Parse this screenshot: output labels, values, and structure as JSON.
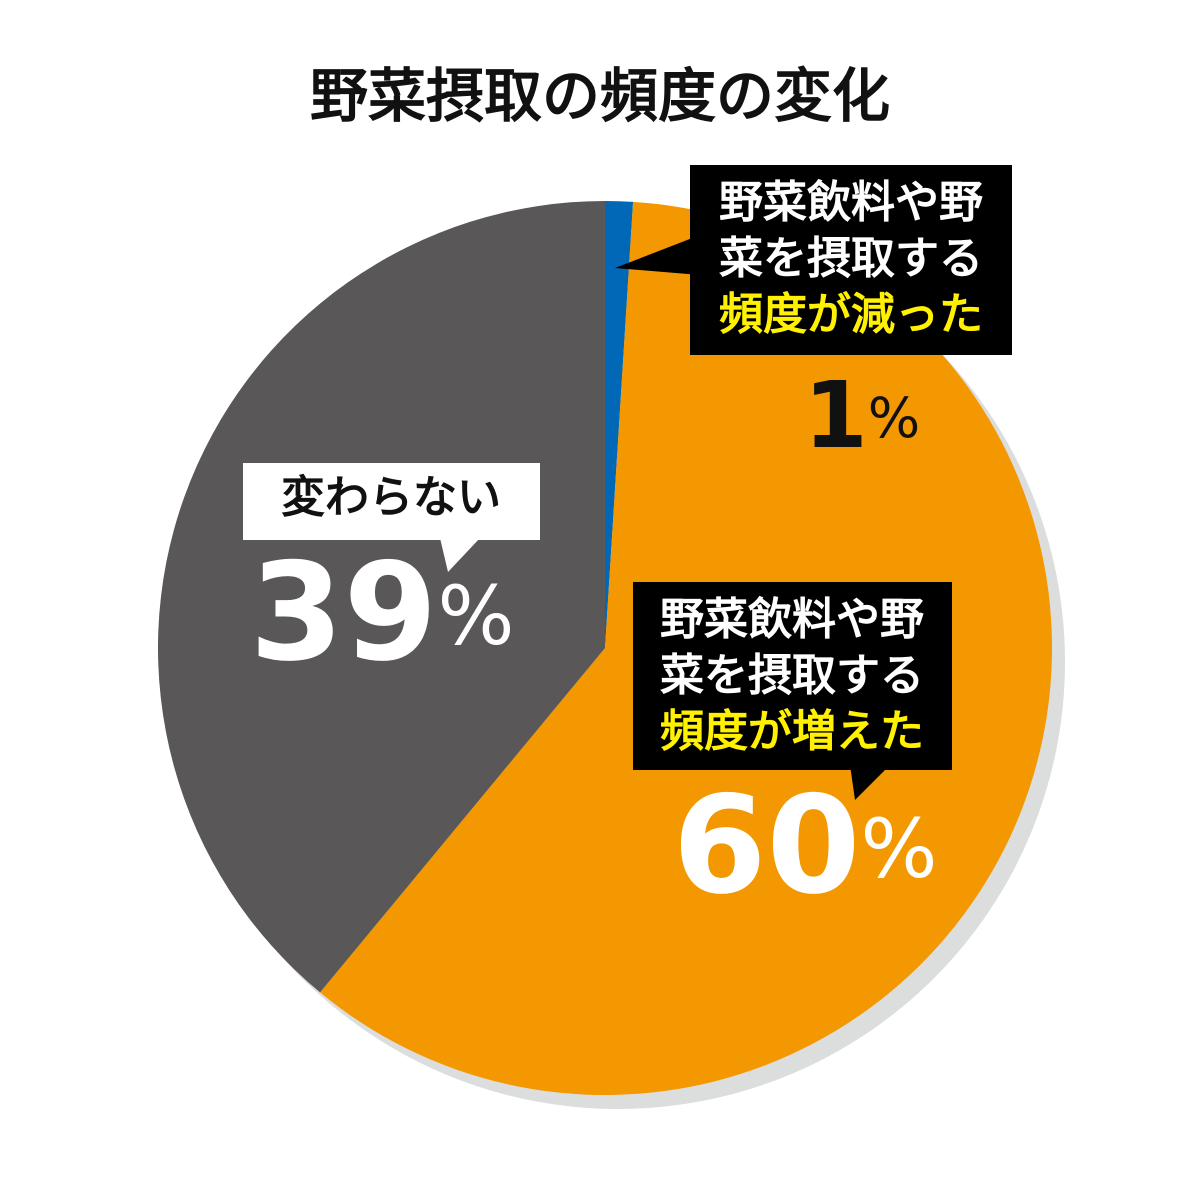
{
  "chart_data": {
    "type": "pie",
    "title": "野菜摂取の頻度の変化",
    "categories": [
      "野菜飲料や野菜を摂取する頻度が減った",
      "野菜飲料や野菜を摂取する頻度が増えた",
      "変わらない"
    ],
    "values": [
      1,
      60,
      39
    ],
    "value_labels": [
      "1%",
      "60%",
      "39%"
    ],
    "colors": [
      "#0068b7",
      "#f39800",
      "#595758"
    ]
  }
}
